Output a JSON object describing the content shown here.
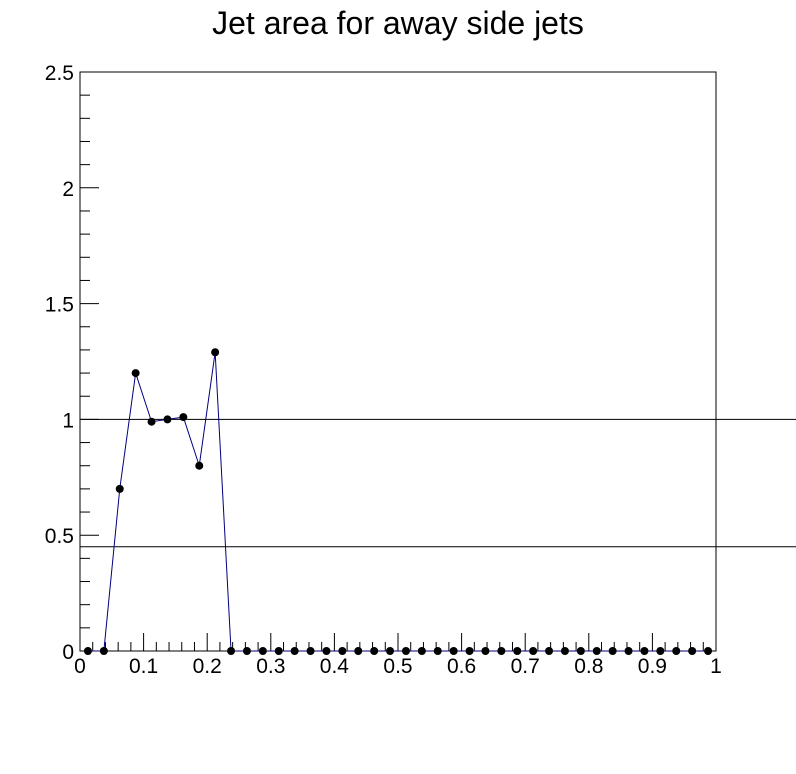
{
  "chart_data": {
    "type": "line",
    "title": "Jet area for away side jets",
    "xlabel": "",
    "ylabel": "",
    "xlim": [
      0,
      1
    ],
    "ylim": [
      0,
      2.5
    ],
    "x_ticks": [
      "0",
      "0.1",
      "0.2",
      "0.3",
      "0.4",
      "0.5",
      "0.6",
      "0.7",
      "0.8",
      "0.9",
      "1"
    ],
    "y_ticks": [
      "0",
      "0.5",
      "1",
      "1.5",
      "2",
      "2.5"
    ],
    "grid": false,
    "legend": "none",
    "reference_lines_y": [
      1.0,
      0.45
    ],
    "series": [
      {
        "color": "#000080",
        "marker_color": "#000000",
        "points": [
          [
            0.0125,
            0
          ],
          [
            0.0375,
            0
          ],
          [
            0.0625,
            0.7
          ],
          [
            0.0875,
            1.2
          ],
          [
            0.1125,
            0.99
          ],
          [
            0.1375,
            1.0
          ],
          [
            0.1625,
            1.01
          ],
          [
            0.1875,
            0.8
          ],
          [
            0.2125,
            1.29
          ],
          [
            0.2375,
            0
          ],
          [
            0.2625,
            0
          ],
          [
            0.2875,
            0
          ],
          [
            0.3125,
            0
          ],
          [
            0.3375,
            0
          ],
          [
            0.3625,
            0
          ],
          [
            0.3875,
            0
          ],
          [
            0.4125,
            0
          ],
          [
            0.4375,
            0
          ],
          [
            0.4625,
            0
          ],
          [
            0.4875,
            0
          ],
          [
            0.5125,
            0
          ],
          [
            0.5375,
            0
          ],
          [
            0.5625,
            0
          ],
          [
            0.5875,
            0
          ],
          [
            0.6125,
            0
          ],
          [
            0.6375,
            0
          ],
          [
            0.6625,
            0
          ],
          [
            0.6875,
            0
          ],
          [
            0.7125,
            0
          ],
          [
            0.7375,
            0
          ],
          [
            0.7625,
            0
          ],
          [
            0.7875,
            0
          ],
          [
            0.8125,
            0
          ],
          [
            0.8375,
            0
          ],
          [
            0.8625,
            0
          ],
          [
            0.8875,
            0
          ],
          [
            0.9125,
            0
          ],
          [
            0.9375,
            0
          ],
          [
            0.9625,
            0
          ],
          [
            0.9875,
            0
          ]
        ]
      }
    ]
  }
}
